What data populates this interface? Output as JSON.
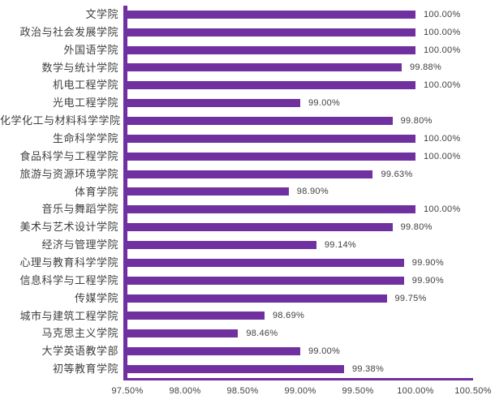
{
  "chart_data": {
    "type": "bar",
    "orientation": "horizontal",
    "title": "",
    "xlabel": "",
    "ylabel": "",
    "xlim": [
      97.5,
      100.5
    ],
    "grid": false,
    "legend": false,
    "bar_color": "#7030A0",
    "axis_color": "#7030A0",
    "text_color": "#404040",
    "categories": [
      "文学院",
      "政治与社会发展学院",
      "外国语学院",
      "数学与统计学院",
      "机电工程学院",
      "光电工程学院",
      "化学化工与材料科学学院",
      "生命科学学院",
      "食品科学与工程学院",
      "旅游与资源环境学院",
      "体育学院",
      "音乐与舞蹈学院",
      "美术与艺术设计学院",
      "经济与管理学院",
      "心理与教育科学学院",
      "信息科学与工程学院",
      "传媒学院",
      "城市与建筑工程学院",
      "马克思主义学院",
      "大学英语教学部",
      "初等教育学院"
    ],
    "values": [
      100.0,
      100.0,
      100.0,
      99.88,
      100.0,
      99.0,
      99.8,
      100.0,
      100.0,
      99.63,
      98.9,
      100.0,
      99.8,
      99.14,
      99.9,
      99.9,
      99.75,
      98.69,
      98.46,
      99.0,
      99.38
    ],
    "value_labels": [
      "100.00%",
      "100.00%",
      "100.00%",
      "99.88%",
      "100.00%",
      "99.00%",
      "99.80%",
      "100.00%",
      "100.00%",
      "99.63%",
      "98.90%",
      "100.00%",
      "99.80%",
      "99.14%",
      "99.90%",
      "99.90%",
      "99.75%",
      "98.69%",
      "98.46%",
      "99.00%",
      "99.38%"
    ],
    "x_ticks": [
      "97.50%",
      "98.00%",
      "98.50%",
      "99.00%",
      "99.50%",
      "100.00%",
      "100.50%"
    ]
  }
}
